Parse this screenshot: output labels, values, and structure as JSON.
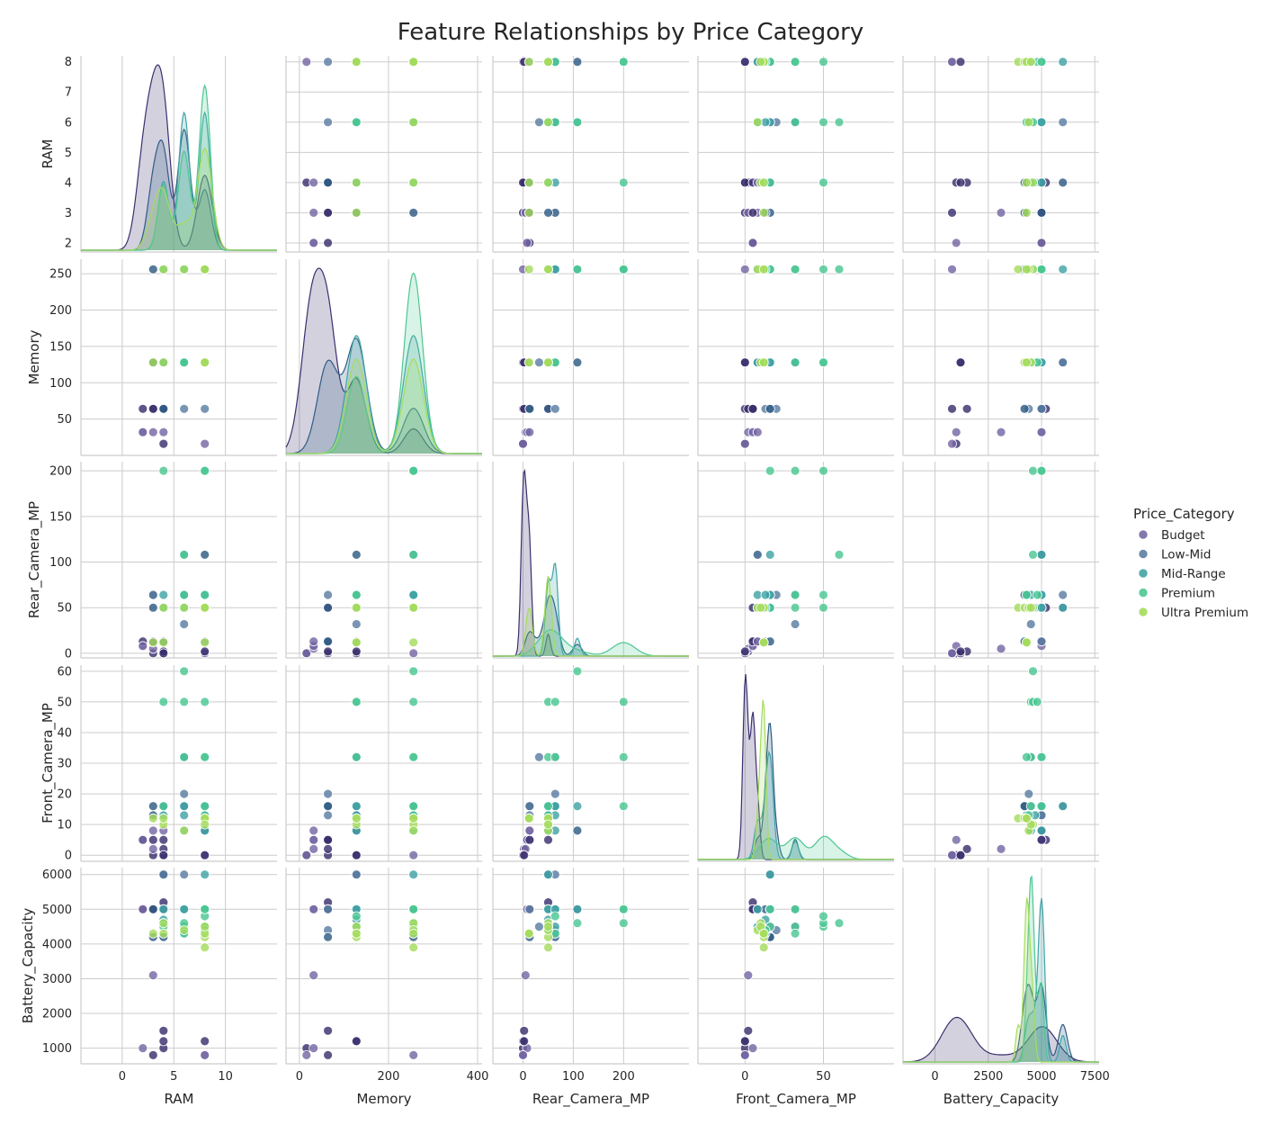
{
  "chart_data": {
    "type": "scatter",
    "kind": "pairplot",
    "title": "Feature Relationships by Price Category",
    "variables": [
      "RAM",
      "Memory",
      "Rear_Camera_MP",
      "Front_Camera_MP",
      "Battery_Capacity"
    ],
    "diagonal": "kde",
    "legend": {
      "title": "Price_Category",
      "placement": "right",
      "categories": [
        "Budget",
        "Low-Mid",
        "Mid-Range",
        "Premium",
        "Ultra Premium"
      ]
    },
    "colors": {
      "Budget": "#7668a5",
      "Budget_dark": "#3b2f6e",
      "Low-Mid": "#5b7ea3",
      "Low-Mid_dark": "#2f5c84",
      "Mid-Range": "#42a3a6",
      "Premium": "#4cc792",
      "Ultra Premium": "#a5dc5d"
    },
    "axes": {
      "RAM": {
        "lim": [
          -4,
          15
        ],
        "ticks": [
          0,
          5,
          10
        ],
        "row_lim": [
          1.7,
          8.2
        ],
        "row_ticks": [
          2,
          3,
          4,
          5,
          6,
          7,
          8
        ]
      },
      "Memory": {
        "lim": [
          -30,
          410
        ],
        "ticks": [
          0,
          200,
          400
        ],
        "row_lim": [
          0,
          270
        ],
        "row_ticks": [
          50,
          100,
          150,
          200,
          250
        ]
      },
      "Rear_Camera_MP": {
        "lim": [
          -60,
          330
        ],
        "ticks": [
          0,
          100,
          200
        ],
        "row_lim": [
          -5,
          210
        ],
        "row_ticks": [
          0,
          50,
          100,
          150,
          200
        ]
      },
      "Front_Camera_MP": {
        "lim": [
          -30,
          95
        ],
        "ticks": [
          0,
          50
        ],
        "row_lim": [
          -2,
          62
        ],
        "row_ticks": [
          0,
          10,
          20,
          30,
          40,
          50,
          60
        ]
      },
      "Battery_Capacity": {
        "lim": [
          -1500,
          7700
        ],
        "ticks": [
          0,
          2500,
          5000,
          7500
        ],
        "row_lim": [
          550,
          6200
        ],
        "row_ticks": [
          1000,
          2000,
          3000,
          4000,
          5000,
          6000
        ]
      }
    },
    "series": [
      {
        "name": "Budget",
        "points": [
          [
            4,
            16,
            0,
            0,
            1000
          ],
          [
            2,
            32,
            8,
            5,
            1000
          ],
          [
            3,
            64,
            0,
            0,
            800
          ],
          [
            8,
            16,
            0,
            0,
            800
          ],
          [
            4,
            64,
            2,
            2,
            1500
          ],
          [
            3,
            32,
            5,
            2,
            3100
          ],
          [
            2,
            64,
            13,
            5,
            5000
          ],
          [
            3,
            128,
            13,
            8,
            5000
          ],
          [
            4,
            128,
            0,
            0,
            1200
          ],
          [
            8,
            256,
            0,
            0,
            800
          ],
          [
            4,
            64,
            50,
            5,
            5200
          ],
          [
            2,
            32,
            8,
            5,
            5000
          ],
          [
            3,
            64,
            13,
            5,
            5000
          ],
          [
            4,
            32,
            13,
            8,
            5000
          ],
          [
            8,
            128,
            2,
            0,
            1200
          ]
        ]
      },
      {
        "name": "Low-Mid",
        "points": [
          [
            3,
            256,
            64,
            16,
            4200
          ],
          [
            6,
            128,
            32,
            32,
            4500
          ],
          [
            4,
            64,
            50,
            16,
            5000
          ],
          [
            6,
            64,
            64,
            20,
            4400
          ],
          [
            8,
            128,
            108,
            8,
            5000
          ],
          [
            6,
            256,
            50,
            16,
            4500
          ],
          [
            3,
            128,
            50,
            13,
            5000
          ],
          [
            8,
            64,
            13,
            13,
            5000
          ],
          [
            4,
            128,
            50,
            16,
            6000
          ],
          [
            6,
            128,
            64,
            16,
            6000
          ],
          [
            4,
            64,
            13,
            16,
            4200
          ]
        ]
      },
      {
        "name": "Mid-Range",
        "points": [
          [
            8,
            128,
            50,
            16,
            5000
          ],
          [
            6,
            128,
            64,
            32,
            5000
          ],
          [
            8,
            256,
            64,
            16,
            5000
          ],
          [
            6,
            256,
            108,
            16,
            5000
          ],
          [
            8,
            256,
            64,
            8,
            4500
          ],
          [
            4,
            128,
            50,
            13,
            4700
          ],
          [
            6,
            128,
            50,
            8,
            5000
          ],
          [
            8,
            256,
            50,
            16,
            6000
          ],
          [
            4,
            128,
            64,
            16,
            5000
          ],
          [
            6,
            256,
            64,
            13,
            4300
          ]
        ]
      },
      {
        "name": "Premium",
        "points": [
          [
            8,
            256,
            200,
            32,
            5000
          ],
          [
            6,
            128,
            50,
            50,
            4500
          ],
          [
            4,
            256,
            200,
            50,
            4600
          ],
          [
            8,
            256,
            50,
            32,
            4500
          ],
          [
            6,
            256,
            108,
            60,
            4600
          ],
          [
            8,
            128,
            64,
            50,
            4800
          ],
          [
            4,
            256,
            50,
            16,
            4500
          ],
          [
            8,
            256,
            200,
            16,
            5000
          ],
          [
            6,
            128,
            64,
            32,
            4300
          ],
          [
            8,
            256,
            50,
            13,
            4400
          ]
        ]
      },
      {
        "name": "Ultra Premium",
        "points": [
          [
            8,
            256,
            50,
            12,
            3900
          ],
          [
            3,
            128,
            12,
            12,
            4300
          ],
          [
            4,
            256,
            50,
            10,
            4600
          ],
          [
            8,
            128,
            50,
            12,
            4200
          ],
          [
            6,
            256,
            50,
            8,
            4400
          ],
          [
            8,
            256,
            12,
            12,
            4300
          ],
          [
            8,
            128,
            50,
            10,
            4500
          ],
          [
            4,
            128,
            12,
            12,
            4300
          ]
        ]
      }
    ]
  }
}
